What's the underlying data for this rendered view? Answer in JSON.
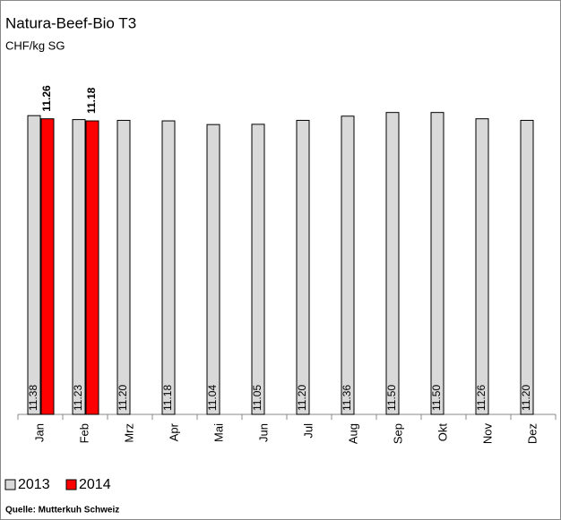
{
  "chart_data": {
    "type": "bar",
    "title": "Natura-Beef-Bio T3",
    "subtitle": "CHF/kg SG",
    "source": "Quelle: Mutterkuh Schweiz",
    "categories": [
      "Jan",
      "Feb",
      "Mrz",
      "Apr",
      "Mai",
      "Jun",
      "Jul",
      "Aug",
      "Sep",
      "Okt",
      "Nov",
      "Dez"
    ],
    "series": [
      {
        "name": "2013",
        "color": "#d9d9d9",
        "values": [
          11.38,
          11.23,
          11.2,
          11.18,
          11.04,
          11.05,
          11.2,
          11.36,
          11.5,
          11.5,
          11.26,
          11.2
        ],
        "value_labels": [
          "11.38",
          "11.23",
          "11.20",
          "11.18",
          "11.04",
          "11.05",
          "11.20",
          "11.36",
          "11.50",
          "11.50",
          "11.26",
          "11.20"
        ]
      },
      {
        "name": "2014",
        "color": "#ff0000",
        "values": [
          11.26,
          11.18,
          null,
          null,
          null,
          null,
          null,
          null,
          null,
          null,
          null,
          null
        ]
      }
    ],
    "ylim": [
      0,
      12
    ]
  }
}
